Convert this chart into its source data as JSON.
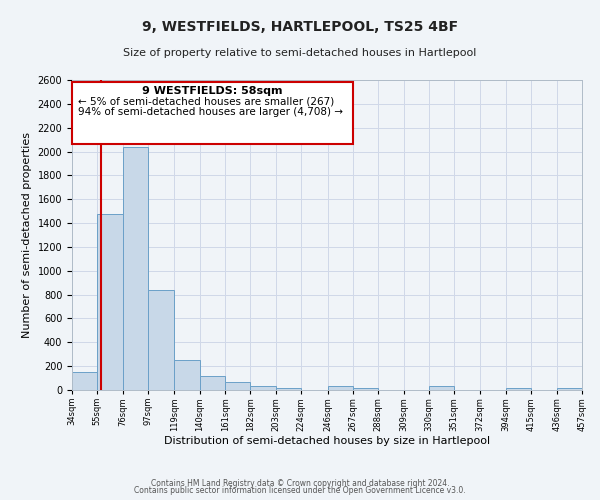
{
  "title": "9, WESTFIELDS, HARTLEPOOL, TS25 4BF",
  "subtitle": "Size of property relative to semi-detached houses in Hartlepool",
  "xlabel": "Distribution of semi-detached houses by size in Hartlepool",
  "ylabel": "Number of semi-detached properties",
  "bar_edges": [
    34,
    55,
    76,
    97,
    119,
    140,
    161,
    182,
    203,
    224,
    246,
    267,
    288,
    309,
    330,
    351,
    372,
    394,
    415,
    436,
    457
  ],
  "bar_heights": [
    150,
    1480,
    2040,
    835,
    255,
    115,
    65,
    35,
    20,
    0,
    30,
    20,
    0,
    0,
    30,
    0,
    0,
    20,
    0,
    15
  ],
  "bar_color": "#c8d8e8",
  "bar_edgecolor": "#6ba0c8",
  "vline_x": 58,
  "vline_color": "#cc0000",
  "ylim": [
    0,
    2600
  ],
  "yticks": [
    0,
    200,
    400,
    600,
    800,
    1000,
    1200,
    1400,
    1600,
    1800,
    2000,
    2200,
    2400,
    2600
  ],
  "annotation_title": "9 WESTFIELDS: 58sqm",
  "annotation_line1": "← 5% of semi-detached houses are smaller (267)",
  "annotation_line2": "94% of semi-detached houses are larger (4,708) →",
  "annotation_box_color": "#cc0000",
  "footer_line1": "Contains HM Land Registry data © Crown copyright and database right 2024.",
  "footer_line2": "Contains public sector information licensed under the Open Government Licence v3.0.",
  "tick_labels": [
    "34sqm",
    "55sqm",
    "76sqm",
    "97sqm",
    "119sqm",
    "140sqm",
    "161sqm",
    "182sqm",
    "203sqm",
    "224sqm",
    "246sqm",
    "267sqm",
    "288sqm",
    "309sqm",
    "330sqm",
    "351sqm",
    "372sqm",
    "394sqm",
    "415sqm",
    "436sqm",
    "457sqm"
  ],
  "grid_color": "#d0d8e8",
  "background_color": "#f0f4f8",
  "title_fontsize": 10,
  "subtitle_fontsize": 8,
  "ylabel_fontsize": 8,
  "xlabel_fontsize": 8,
  "ytick_fontsize": 7,
  "xtick_fontsize": 6
}
